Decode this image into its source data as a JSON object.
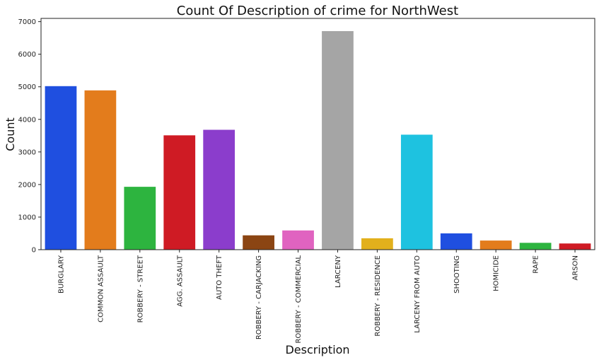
{
  "chart_data": {
    "type": "bar",
    "title": "Count Of Description of crime for NorthWest",
    "xlabel": "Description",
    "ylabel": "Count",
    "ylim": [
      0,
      7100
    ],
    "yticks": [
      0,
      1000,
      2000,
      3000,
      4000,
      5000,
      6000,
      7000
    ],
    "ytick_labels": [
      "0",
      "1000",
      "2000",
      "3000",
      "4000",
      "5000",
      "6000",
      "7000"
    ],
    "grid": false,
    "categories": [
      "BURGLARY",
      "COMMON ASSAULT",
      "ROBBERY - STREET",
      "AGG. ASSAULT",
      "AUTO THEFT",
      "ROBBERY - CARJACKING",
      "ROBBERY - COMMERCIAL",
      "LARCENY",
      "ROBBERY - RESIDENCE",
      "LARCENY FROM AUTO",
      "SHOOTING",
      "HOMICIDE",
      "RAPE",
      "ARSON"
    ],
    "values": [
      5020,
      4890,
      1930,
      3510,
      3680,
      440,
      590,
      6710,
      350,
      3530,
      500,
      280,
      210,
      190
    ],
    "colors": [
      "#1f4fe0",
      "#e37c1c",
      "#2db43f",
      "#cf1b24",
      "#8b3dcc",
      "#8b4513",
      "#e063c0",
      "#a5a5a5",
      "#e2b01c",
      "#1ec2e0",
      "#1f4fe0",
      "#e37c1c",
      "#2db43f",
      "#cf1b24"
    ]
  }
}
